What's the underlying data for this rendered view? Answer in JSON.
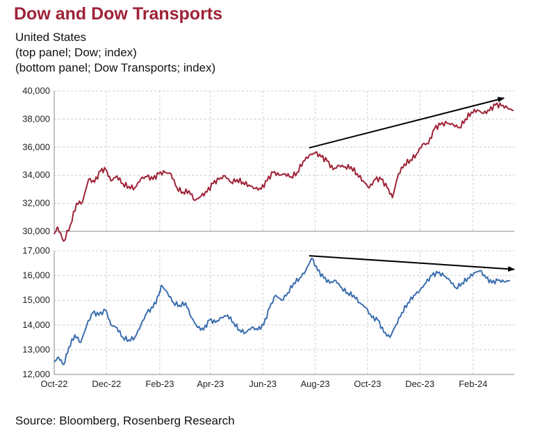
{
  "header": {
    "title": "Dow and Dow Transports",
    "subtitle_lines": [
      "United States",
      "(top panel; Dow; index)",
      "(bottom panel; Dow Transports; index)"
    ]
  },
  "footer": {
    "source": "Source: Bloomberg, Rosenberg Research"
  },
  "colors": {
    "dow": "#9e2236",
    "transports": "#3a6dae",
    "arrow": "#000000",
    "grid": "#cccccc"
  },
  "chart_data": [
    {
      "type": "line",
      "panel": "top",
      "series_label": "Dow",
      "x_ticks": [
        "Oct-22",
        "Dec-22",
        "Feb-23",
        "Apr-23",
        "Jun-23",
        "Aug-23",
        "Oct-23",
        "Dec-23",
        "Feb-24"
      ],
      "y_ticks": [
        "30,000",
        "32,000",
        "34,000",
        "36,000",
        "38,000",
        "40,000"
      ],
      "ylim": [
        30000,
        40000
      ],
      "xlim": [
        "2022-10-01",
        "2024-03-20"
      ],
      "grid": true,
      "points": [
        [
          "2022-10-01",
          29800
        ],
        [
          "2022-10-05",
          30300
        ],
        [
          "2022-10-12",
          29300
        ],
        [
          "2022-10-20",
          30500
        ],
        [
          "2022-10-27",
          32000
        ],
        [
          "2022-11-03",
          32100
        ],
        [
          "2022-11-10",
          33700
        ],
        [
          "2022-11-17",
          33500
        ],
        [
          "2022-11-24",
          34300
        ],
        [
          "2022-11-30",
          34400
        ],
        [
          "2022-12-06",
          33600
        ],
        [
          "2022-12-13",
          33950
        ],
        [
          "2022-12-20",
          33400
        ],
        [
          "2022-12-27",
          33200
        ],
        [
          "2023-01-03",
          33100
        ],
        [
          "2023-01-10",
          33750
        ],
        [
          "2023-01-17",
          33900
        ],
        [
          "2023-01-24",
          33700
        ],
        [
          "2023-01-31",
          34100
        ],
        [
          "2023-02-07",
          34200
        ],
        [
          "2023-02-14",
          34100
        ],
        [
          "2023-02-21",
          33100
        ],
        [
          "2023-02-28",
          32800
        ],
        [
          "2023-03-07",
          32900
        ],
        [
          "2023-03-14",
          32200
        ],
        [
          "2023-03-21",
          32500
        ],
        [
          "2023-03-28",
          32800
        ],
        [
          "2023-04-04",
          33400
        ],
        [
          "2023-04-11",
          33700
        ],
        [
          "2023-04-18",
          33950
        ],
        [
          "2023-04-25",
          33500
        ],
        [
          "2023-05-02",
          33700
        ],
        [
          "2023-05-09",
          33500
        ],
        [
          "2023-05-16",
          33300
        ],
        [
          "2023-05-23",
          33050
        ],
        [
          "2023-05-30",
          33000
        ],
        [
          "2023-06-06",
          33600
        ],
        [
          "2023-06-13",
          34200
        ],
        [
          "2023-06-20",
          34000
        ],
        [
          "2023-06-27",
          34100
        ],
        [
          "2023-07-04",
          33900
        ],
        [
          "2023-07-11",
          34200
        ],
        [
          "2023-07-18",
          35000
        ],
        [
          "2023-07-25",
          35400
        ],
        [
          "2023-08-01",
          35600
        ],
        [
          "2023-08-08",
          35300
        ],
        [
          "2023-08-15",
          35000
        ],
        [
          "2023-08-22",
          34400
        ],
        [
          "2023-08-29",
          34700
        ],
        [
          "2023-09-05",
          34600
        ],
        [
          "2023-09-12",
          34600
        ],
        [
          "2023-09-19",
          34100
        ],
        [
          "2023-09-26",
          33600
        ],
        [
          "2023-10-03",
          33100
        ],
        [
          "2023-10-10",
          33700
        ],
        [
          "2023-10-17",
          33700
        ],
        [
          "2023-10-24",
          33100
        ],
        [
          "2023-10-30",
          32400
        ],
        [
          "2023-11-06",
          34100
        ],
        [
          "2023-11-13",
          34800
        ],
        [
          "2023-11-20",
          35100
        ],
        [
          "2023-11-27",
          35500
        ],
        [
          "2023-12-04",
          36200
        ],
        [
          "2023-12-11",
          36250
        ],
        [
          "2023-12-18",
          37300
        ],
        [
          "2023-12-25",
          37600
        ],
        [
          "2024-01-02",
          37700
        ],
        [
          "2024-01-09",
          37600
        ],
        [
          "2024-01-16",
          37400
        ],
        [
          "2024-01-23",
          38000
        ],
        [
          "2024-01-30",
          38500
        ],
        [
          "2024-02-06",
          38650
        ],
        [
          "2024-02-13",
          38400
        ],
        [
          "2024-02-20",
          38600
        ],
        [
          "2024-02-27",
          39000
        ],
        [
          "2024-03-05",
          38950
        ],
        [
          "2024-03-12",
          38800
        ],
        [
          "2024-03-19",
          38600
        ]
      ],
      "trend_arrow": {
        "from": [
          "2023-07-25",
          35950
        ],
        "to": [
          "2024-03-08",
          39500
        ]
      }
    },
    {
      "type": "line",
      "panel": "bottom",
      "series_label": "Dow Transports",
      "x_ticks": [
        "Oct-22",
        "Dec-22",
        "Feb-23",
        "Apr-23",
        "Jun-23",
        "Aug-23",
        "Oct-23",
        "Dec-23",
        "Feb-24"
      ],
      "y_ticks": [
        "12,000",
        "13,000",
        "14,000",
        "15,000",
        "16,000",
        "17,000"
      ],
      "ylim": [
        12000,
        17000
      ],
      "xlim": [
        "2022-10-01",
        "2024-03-20"
      ],
      "grid": true,
      "points": [
        [
          "2022-10-01",
          12500
        ],
        [
          "2022-10-06",
          12700
        ],
        [
          "2022-10-12",
          12400
        ],
        [
          "2022-10-18",
          13100
        ],
        [
          "2022-10-25",
          13600
        ],
        [
          "2022-11-01",
          13300
        ],
        [
          "2022-11-08",
          14000
        ],
        [
          "2022-11-15",
          14500
        ],
        [
          "2022-11-22",
          14400
        ],
        [
          "2022-11-30",
          14600
        ],
        [
          "2022-12-06",
          14000
        ],
        [
          "2022-12-13",
          13900
        ],
        [
          "2022-12-20",
          13500
        ],
        [
          "2022-12-27",
          13400
        ],
        [
          "2023-01-03",
          13500
        ],
        [
          "2023-01-10",
          14000
        ],
        [
          "2023-01-17",
          14500
        ],
        [
          "2023-01-24",
          14700
        ],
        [
          "2023-01-31",
          15200
        ],
        [
          "2023-02-03",
          15600
        ],
        [
          "2023-02-10",
          15300
        ],
        [
          "2023-02-17",
          14900
        ],
        [
          "2023-02-24",
          14800
        ],
        [
          "2023-03-03",
          14900
        ],
        [
          "2023-03-10",
          14300
        ],
        [
          "2023-03-17",
          13900
        ],
        [
          "2023-03-24",
          13800
        ],
        [
          "2023-03-31",
          14200
        ],
        [
          "2023-04-07",
          14100
        ],
        [
          "2023-04-14",
          14300
        ],
        [
          "2023-04-21",
          14400
        ],
        [
          "2023-04-28",
          14100
        ],
        [
          "2023-05-05",
          13800
        ],
        [
          "2023-05-12",
          13700
        ],
        [
          "2023-05-19",
          13900
        ],
        [
          "2023-05-26",
          13800
        ],
        [
          "2023-06-02",
          14000
        ],
        [
          "2023-06-09",
          14700
        ],
        [
          "2023-06-16",
          15200
        ],
        [
          "2023-06-23",
          15000
        ],
        [
          "2023-06-30",
          15300
        ],
        [
          "2023-07-07",
          15700
        ],
        [
          "2023-07-14",
          15900
        ],
        [
          "2023-07-21",
          16200
        ],
        [
          "2023-07-28",
          16700
        ],
        [
          "2023-08-04",
          16200
        ],
        [
          "2023-08-11",
          15900
        ],
        [
          "2023-08-18",
          15700
        ],
        [
          "2023-08-25",
          15800
        ],
        [
          "2023-09-01",
          15500
        ],
        [
          "2023-09-08",
          15300
        ],
        [
          "2023-09-15",
          15200
        ],
        [
          "2023-09-22",
          14900
        ],
        [
          "2023-09-29",
          14700
        ],
        [
          "2023-10-06",
          14300
        ],
        [
          "2023-10-13",
          14200
        ],
        [
          "2023-10-20",
          13700
        ],
        [
          "2023-10-27",
          13500
        ],
        [
          "2023-11-03",
          14000
        ],
        [
          "2023-11-10",
          14500
        ],
        [
          "2023-11-17",
          14900
        ],
        [
          "2023-11-24",
          15200
        ],
        [
          "2023-12-01",
          15400
        ],
        [
          "2023-12-08",
          15700
        ],
        [
          "2023-12-15",
          16000
        ],
        [
          "2023-12-22",
          16100
        ],
        [
          "2023-12-29",
          16000
        ],
        [
          "2024-01-05",
          15800
        ],
        [
          "2024-01-12",
          15500
        ],
        [
          "2024-01-19",
          15700
        ],
        [
          "2024-01-26",
          15900
        ],
        [
          "2024-02-02",
          16100
        ],
        [
          "2024-02-09",
          16200
        ],
        [
          "2024-02-16",
          15900
        ],
        [
          "2024-02-23",
          15700
        ],
        [
          "2024-03-01",
          15800
        ],
        [
          "2024-03-08",
          15750
        ],
        [
          "2024-03-15",
          15800
        ]
      ],
      "trend_arrow": {
        "from": [
          "2023-07-25",
          16800
        ],
        "to": [
          "2024-03-20",
          16250
        ]
      }
    }
  ]
}
